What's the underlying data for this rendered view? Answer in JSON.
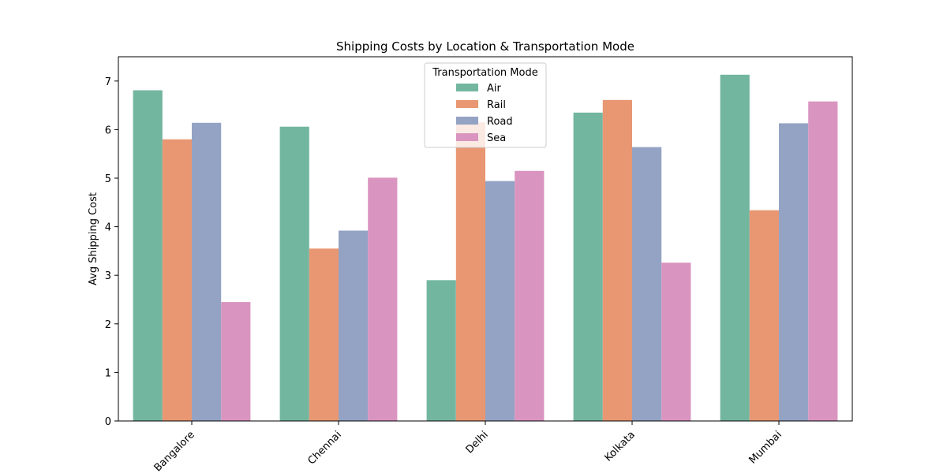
{
  "chart_data": {
    "type": "bar",
    "title": "Shipping Costs by Location & Transportation Mode",
    "xlabel": "",
    "ylabel": "Avg Shipping Cost",
    "categories": [
      "Bangalore",
      "Chennai",
      "Delhi",
      "Kolkata",
      "Mumbai"
    ],
    "series": [
      {
        "name": "Air",
        "color": "#73b6a0",
        "values": [
          6.81,
          6.06,
          2.9,
          6.35,
          7.13
        ]
      },
      {
        "name": "Rail",
        "color": "#e89772",
        "values": [
          5.8,
          3.55,
          6.15,
          6.61,
          4.34
        ]
      },
      {
        "name": "Road",
        "color": "#94a3c4",
        "values": [
          6.14,
          3.92,
          4.94,
          5.64,
          6.13
        ]
      },
      {
        "name": "Sea",
        "color": "#d995bf",
        "values": [
          2.45,
          5.01,
          5.15,
          3.26,
          6.58
        ]
      }
    ],
    "ylim": [
      0,
      7.5
    ],
    "yticks": [
      0,
      1,
      2,
      3,
      4,
      5,
      6,
      7
    ],
    "grid": false,
    "legend": {
      "title": "Transportation Mode",
      "placement": "top-center"
    }
  }
}
